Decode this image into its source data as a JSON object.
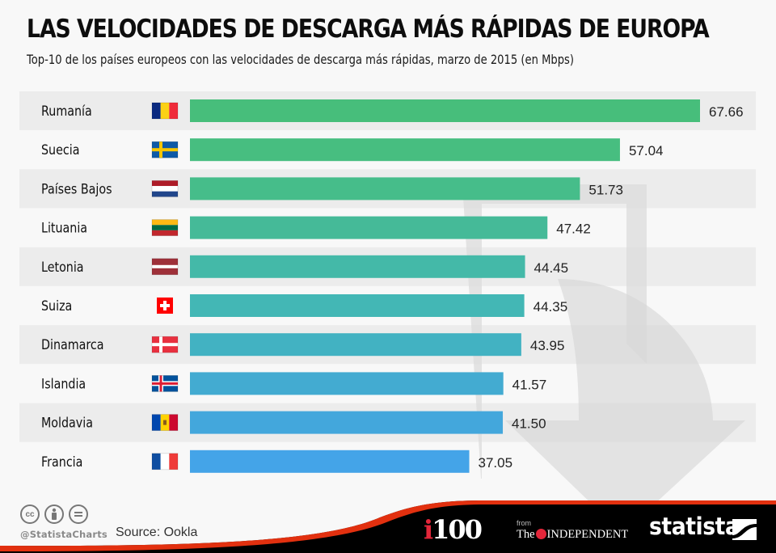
{
  "title": "LAS VELOCIDADES DE DESCARGA MÁS RÁPIDAS DE EUROPA",
  "subtitle": "Top-10 de los países europeos con las velocidades de descarga más rápidas, marzo de 2015 (en Mbps)",
  "chart_data": {
    "type": "bar",
    "orientation": "horizontal",
    "title": "LAS VELOCIDADES DE DESCARGA MÁS RÁPIDAS DE EUROPA",
    "subtitle": "Top-10 de los países europeos con las velocidades de descarga más rápidas, marzo de 2015 (en Mbps)",
    "xlabel": "",
    "ylabel": "",
    "unit": "Mbps",
    "xlim": [
      0,
      67.66
    ],
    "grid": false,
    "categories": [
      "Rumanía",
      "Suecia",
      "Países Bajos",
      "Lituania",
      "Letonia",
      "Suiza",
      "Dinamarca",
      "Islandia",
      "Moldavia",
      "Francia"
    ],
    "values": [
      67.66,
      57.04,
      51.73,
      47.42,
      44.45,
      44.35,
      43.95,
      41.57,
      41.5,
      37.05
    ],
    "value_labels": [
      "67.66",
      "57.04",
      "51.73",
      "47.42",
      "44.45",
      "44.35",
      "43.95",
      "41.57",
      "41.50",
      "37.05"
    ],
    "flags": [
      "romania",
      "sweden",
      "netherlands",
      "lithuania",
      "latvia",
      "switzerland",
      "denmark",
      "iceland",
      "moldova",
      "france"
    ],
    "bar_colors": [
      "#47be7b",
      "#47be80",
      "#46bd8a",
      "#45ba98",
      "#44b9a8",
      "#43b7b5",
      "#42b2c2",
      "#43abd1",
      "#43a7dc",
      "#44a4e8"
    ]
  },
  "colors": {
    "row_stripe": "#ececec",
    "background": "#f8f8f8",
    "footer_black": "#000000",
    "footer_red": "#e2300f",
    "watermark_arrow": "#dcdcdc"
  },
  "footer": {
    "icons": [
      "cc-icon",
      "attribution-icon",
      "no-derivatives-icon"
    ],
    "cc_text": "cc",
    "handle": "@StatistaCharts",
    "source": "Source: Ookla",
    "i100_i": "i",
    "i100_num": "100",
    "from": "from",
    "the": "The",
    "independent": "INDEPENDENT",
    "statista": "statista"
  }
}
